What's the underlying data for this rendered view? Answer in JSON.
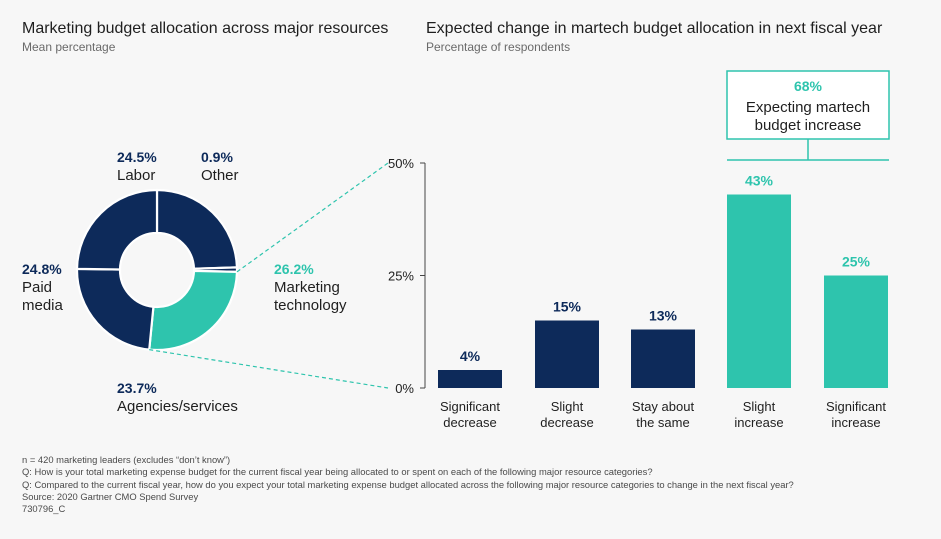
{
  "colors": {
    "navy": "#0d2a5a",
    "teal": "#2ec4ad",
    "text": "#1f1f1f",
    "muted": "#6a6a6a"
  },
  "left_title": "Marketing budget allocation across major resources",
  "left_subtitle": "Mean percentage",
  "right_title": "Expected change in martech budget allocation in next fiscal year",
  "right_subtitle": "Percentage of respondents",
  "chart_data": [
    {
      "type": "pie",
      "title": "Marketing budget allocation across major resources",
      "subtitle": "Mean percentage",
      "slices": [
        {
          "label": "Labor",
          "value": 24.5,
          "value_label": "24.5%",
          "highlight": false
        },
        {
          "label": "Other",
          "value": 0.9,
          "value_label": "0.9%",
          "highlight": false
        },
        {
          "label": "Marketing technology",
          "value": 26.2,
          "value_label": "26.2%",
          "highlight": true
        },
        {
          "label": "Agencies/services",
          "value": 23.7,
          "value_label": "23.7%",
          "highlight": false
        },
        {
          "label": "Paid media",
          "value": 24.8,
          "value_label": "24.8%",
          "highlight": false
        }
      ]
    },
    {
      "type": "bar",
      "title": "Expected change in martech budget allocation in next fiscal year",
      "subtitle": "Percentage of respondents",
      "categories": [
        "Significant decrease",
        "Slight decrease",
        "Stay about the same",
        "Slight increase",
        "Significant increase"
      ],
      "values": [
        4,
        15,
        13,
        43,
        25
      ],
      "value_labels": [
        "4%",
        "15%",
        "13%",
        "43%",
        "25%"
      ],
      "highlight": [
        false,
        false,
        false,
        true,
        true
      ],
      "ylim": [
        0,
        50
      ],
      "yticks": [
        0,
        25,
        50
      ],
      "ytick_labels": [
        "0%",
        "25%",
        "50%"
      ],
      "grid": false,
      "annotation": {
        "value": "68%",
        "text": "Expecting martech budget increase"
      }
    }
  ],
  "footnotes": [
    "n = 420 marketing leaders (excludes “don’t know”)",
    "Q: How is your total marketing expense budget for the current fiscal year being allocated to or spent on each of the following major resource categories?",
    "Q: Compared to the current fiscal year, how do you expect your total marketing expense budget allocated across the following major resource categories to change in the next fiscal year?",
    "Source: 2020 Gartner CMO Spend Survey",
    "730796_C"
  ]
}
